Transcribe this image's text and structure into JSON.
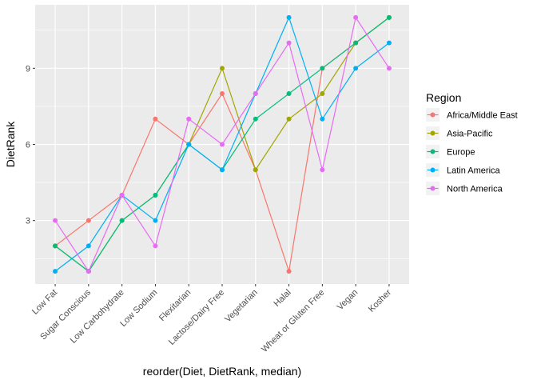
{
  "chart_data": {
    "type": "line",
    "xlabel": "reorder(Diet, DietRank, median)",
    "ylabel": "DietRank",
    "categories": [
      "Low Fat",
      "Sugar Conscious",
      "Low Carbohydrate",
      "Low Sodium",
      "Flexitarian",
      "Lactose/Dairy Free",
      "Vegetarian",
      "Halal",
      "Wheat or Gluten Free",
      "Vegan",
      "Kosher"
    ],
    "yticks": [
      3,
      6,
      9
    ],
    "ylim": [
      0.5,
      11.5
    ],
    "grid": true,
    "legend": {
      "title": "Region",
      "placement": "right"
    },
    "series": [
      {
        "name": "Africa/Middle East",
        "color": "#F8766D",
        "values": [
          2,
          3,
          4,
          7,
          6,
          8,
          5,
          1,
          9,
          10,
          11
        ]
      },
      {
        "name": "Asia-Pacific",
        "color": "#A3A500",
        "values": [
          2,
          1,
          3,
          4,
          6,
          9,
          5,
          7,
          8,
          10,
          11
        ]
      },
      {
        "name": "Europe",
        "color": "#00BF7D",
        "values": [
          2,
          1,
          3,
          4,
          6,
          5,
          7,
          8,
          9,
          10,
          11
        ]
      },
      {
        "name": "Latin America",
        "color": "#00B0F6",
        "values": [
          1,
          2,
          4,
          3,
          6,
          5,
          8,
          11,
          7,
          9,
          10
        ]
      },
      {
        "name": "North America",
        "color": "#E76BF3",
        "values": [
          3,
          1,
          4,
          2,
          7,
          6,
          8,
          10,
          5,
          11,
          9
        ]
      }
    ]
  }
}
